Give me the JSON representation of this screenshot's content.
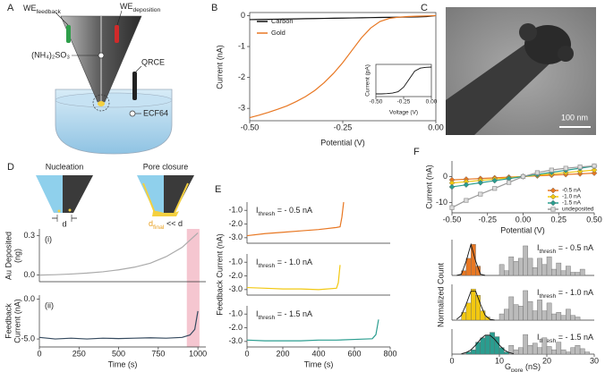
{
  "panel_labels": [
    "A",
    "B",
    "C",
    "D",
    "E",
    "F"
  ],
  "panel_a": {
    "we_feedback": {
      "text": "WE",
      "sub": "feedback"
    },
    "we_deposition": {
      "text": "WE",
      "sub": "deposition"
    },
    "electrolyte": "(NH₄)₂SO₃",
    "reference": "QRCE",
    "bath": "ECF64"
  },
  "panel_c": {
    "scale_bar": "100 nm"
  },
  "panel_d": {
    "nucleation": "Nucleation",
    "pore_closure": "Pore closure",
    "d": "d",
    "d_final": {
      "text": "d",
      "sub": "final",
      "rest": " << d"
    },
    "panel_i": "(i)",
    "panel_ii": "(ii)"
  },
  "chart_data": [
    {
      "type": "line",
      "xlabel": "Potential (V)",
      "ylabel": "Current (nA)",
      "xlim": [
        -0.5,
        0.0
      ],
      "ylim": [
        -3.4,
        0.1
      ],
      "xticks": [
        {
          "value": -0.5,
          "label": "-0.50"
        },
        {
          "value": -0.25,
          "label": "-0.25"
        },
        {
          "value": 0,
          "label": "0.00"
        }
      ],
      "yticks": [
        -3,
        -2,
        -1,
        0
      ],
      "legend": "upper left",
      "x": [
        -0.5,
        -0.475,
        -0.45,
        -0.425,
        -0.4,
        -0.375,
        -0.35,
        -0.325,
        -0.3,
        -0.275,
        -0.25,
        -0.225,
        -0.2,
        -0.175,
        -0.15,
        -0.125,
        -0.1,
        -0.075,
        -0.05,
        -0.025,
        0
      ],
      "series": [
        {
          "name": "Carbon",
          "color": "#111111",
          "values": [
            -0.13,
            -0.125,
            -0.12,
            -0.115,
            -0.11,
            -0.105,
            -0.1,
            -0.095,
            -0.09,
            -0.085,
            -0.08,
            -0.075,
            -0.07,
            -0.065,
            -0.06,
            -0.055,
            -0.05,
            -0.045,
            -0.04,
            -0.03,
            0
          ]
        },
        {
          "name": "Gold",
          "color": "#e87722",
          "values": [
            -3.3,
            -3.22,
            -3.13,
            -3.03,
            -2.92,
            -2.78,
            -2.62,
            -2.42,
            -2.17,
            -1.87,
            -1.52,
            -1.12,
            -0.72,
            -0.4,
            -0.19,
            -0.09,
            -0.05,
            -0.03,
            -0.02,
            -0.01,
            0
          ]
        }
      ]
    },
    {
      "type": "line",
      "xlabel": "Voltage (V)",
      "ylabel": "Current (pA)",
      "xlim": [
        -0.5,
        0.0
      ],
      "ylim": [
        -1.1,
        0.1
      ],
      "xticks": [
        {
          "value": -0.5,
          "label": "-0.50"
        },
        {
          "value": -0.25,
          "label": "-0.25"
        },
        {
          "value": 0,
          "label": "0.00"
        }
      ],
      "x": [
        -0.5,
        -0.45,
        -0.4,
        -0.35,
        -0.3,
        -0.25,
        -0.2,
        -0.15,
        -0.1,
        -0.05,
        0
      ],
      "series": [
        {
          "color": "#111111",
          "values": [
            -1,
            -1,
            -0.99,
            -0.97,
            -0.92,
            -0.75,
            -0.45,
            -0.15,
            -0.04,
            -0.01,
            0
          ]
        }
      ]
    },
    {
      "type": "line",
      "ylabel": [
        "Au Deposited",
        "(ng)"
      ],
      "xlim": [
        0,
        1050
      ],
      "ylim": [
        -0.05,
        0.35
      ],
      "yticks": [
        {
          "value": 0,
          "label": "0.0"
        },
        {
          "value": 0.3,
          "label": "0.3"
        }
      ],
      "highlight_x": [
        930,
        1010
      ],
      "highlight_color": "#f2b8c4",
      "x": [
        0,
        100,
        200,
        300,
        400,
        500,
        600,
        700,
        800,
        900,
        1000
      ],
      "series": [
        {
          "color": "#aaaaaa",
          "values": [
            0,
            0.003,
            0.008,
            0.015,
            0.025,
            0.04,
            0.06,
            0.09,
            0.14,
            0.21,
            0.32
          ]
        }
      ]
    },
    {
      "type": "line",
      "xlabel": "Time (s)",
      "ylabel": [
        "Feedback",
        "Current (nA)"
      ],
      "xlim": [
        0,
        1050
      ],
      "ylim": [
        -6,
        0.5
      ],
      "xticks": [
        0,
        250,
        500,
        750,
        1000
      ],
      "yticks": [
        {
          "value": -5,
          "label": "-5.0"
        },
        {
          "value": 0,
          "label": "0.0"
        }
      ],
      "x": [
        0,
        100,
        200,
        300,
        400,
        500,
        600,
        700,
        800,
        900,
        950,
        980,
        1000
      ],
      "series": [
        {
          "color": "#34495e",
          "values": [
            -4.8,
            -5.0,
            -4.9,
            -5.0,
            -4.9,
            -4.95,
            -4.9,
            -4.85,
            -4.9,
            -4.8,
            -4.5,
            -3.8,
            -1.5
          ]
        }
      ]
    },
    {
      "type": "line",
      "annotation": {
        "text": "I",
        "sub": "thresh",
        "rest": " = - 0.5 nA"
      },
      "xlim": [
        0,
        800
      ],
      "ylim": [
        -3.4,
        -0.4
      ],
      "yticks": [
        {
          "value": -1,
          "label": "-1.0"
        },
        {
          "value": -2,
          "label": "-2.0"
        },
        {
          "value": -3,
          "label": "-3.0"
        }
      ],
      "x": [
        0,
        100,
        200,
        300,
        400,
        500,
        520,
        530,
        540
      ],
      "series": [
        {
          "color": "#e87722",
          "values": [
            -2.85,
            -2.7,
            -2.6,
            -2.5,
            -2.4,
            -2.25,
            -2.2,
            -1.5,
            -0.4
          ]
        }
      ]
    },
    {
      "type": "line",
      "annotation": {
        "text": "I",
        "sub": "thresh",
        "rest": " = - 1.0 nA"
      },
      "ylabel": "Feedback Current (nA)",
      "xlim": [
        0,
        800
      ],
      "ylim": [
        -3.4,
        -0.4
      ],
      "yticks": [
        {
          "value": -1,
          "label": "-1.0"
        },
        {
          "value": -2,
          "label": "-2.0"
        },
        {
          "value": -3,
          "label": "-3.0"
        }
      ],
      "x": [
        0,
        100,
        200,
        300,
        400,
        500,
        510,
        520
      ],
      "series": [
        {
          "color": "#f2c811",
          "values": [
            -2.85,
            -2.9,
            -2.95,
            -2.95,
            -3.0,
            -2.9,
            -2.5,
            -1.2
          ]
        }
      ]
    },
    {
      "type": "line",
      "annotation": {
        "text": "I",
        "sub": "thresh",
        "rest": " = - 1.5 nA"
      },
      "xlabel": "Time (s)",
      "xlim": [
        0,
        800
      ],
      "ylim": [
        -3.4,
        -0.4
      ],
      "xticks": [
        0,
        200,
        400,
        600,
        800
      ],
      "yticks": [
        {
          "value": -1,
          "label": "-1.0"
        },
        {
          "value": -2,
          "label": "-2.0"
        },
        {
          "value": -3,
          "label": "-3.0"
        }
      ],
      "x": [
        0,
        100,
        200,
        300,
        400,
        500,
        600,
        700,
        720,
        735
      ],
      "series": [
        {
          "color": "#2a9d8f",
          "values": [
            -2.9,
            -2.95,
            -2.95,
            -2.95,
            -2.9,
            -2.9,
            -2.85,
            -2.8,
            -2.5,
            -1.4
          ]
        }
      ]
    },
    {
      "type": "line",
      "xlabel": "Potential (V)",
      "ylabel": "Current (nA)",
      "xlim": [
        -0.5,
        0.5
      ],
      "ylim": [
        -14,
        6
      ],
      "xticks": [
        {
          "value": -0.5,
          "label": "-0.50"
        },
        {
          "value": -0.25,
          "label": "-0.25"
        },
        {
          "value": 0,
          "label": "0.00"
        },
        {
          "value": 0.25,
          "label": "0.25"
        },
        {
          "value": 0.5,
          "label": "0.50"
        }
      ],
      "yticks": [
        -10,
        0
      ],
      "legend": "lower right",
      "x": [
        -0.5,
        -0.4,
        -0.3,
        -0.2,
        -0.1,
        0,
        0.1,
        0.2,
        0.3,
        0.4,
        0.5
      ],
      "series": [
        {
          "name": "-0.5 nA",
          "color": "#e87722",
          "marker": "diamond",
          "values": [
            -1.3,
            -1.04,
            -0.78,
            -0.52,
            -0.26,
            0,
            0.26,
            0.52,
            0.78,
            1.04,
            1.3
          ]
        },
        {
          "name": "-1.0 nA",
          "color": "#f2c811",
          "marker": "diamond",
          "values": [
            -2.5,
            -2,
            -1.5,
            -1,
            -0.5,
            0,
            0.5,
            1,
            1.5,
            2,
            2.5
          ]
        },
        {
          "name": "-1.5 nA",
          "color": "#2a9d8f",
          "marker": "diamond",
          "values": [
            -4,
            -3.2,
            -2.4,
            -1.6,
            -0.8,
            0,
            0.8,
            1.6,
            2.4,
            3.2,
            4
          ]
        },
        {
          "name": "undeposited",
          "color": "#999999",
          "marker": "square",
          "values": [
            -12,
            -9.2,
            -6.8,
            -4.6,
            -2.3,
            0,
            1.5,
            2.5,
            3.2,
            3.7,
            4.1
          ]
        }
      ]
    },
    {
      "type": "histogram",
      "annotation": {
        "text": "I",
        "sub": "thresh",
        "rest": " = - 0.5 nA"
      },
      "xlim": [
        0,
        30
      ],
      "ylim": [
        0,
        1.15
      ],
      "bins": [
        0,
        1,
        2,
        3,
        4,
        5,
        6,
        7,
        8,
        9,
        10,
        11,
        12,
        13,
        14,
        15,
        16,
        17,
        18,
        19,
        20,
        21,
        22,
        23,
        24,
        25,
        26,
        27,
        28,
        29,
        30
      ],
      "series": [
        {
          "color": "#e87722",
          "values": [
            0,
            0,
            0.15,
            0.55,
            1.0,
            0.3,
            0,
            0,
            0,
            0,
            0,
            0,
            0,
            0,
            0,
            0,
            0,
            0,
            0,
            0,
            0,
            0,
            0,
            0,
            0,
            0,
            0,
            0,
            0,
            0
          ]
        },
        {
          "color": "#bbbbbb",
          "values": [
            0,
            0,
            0,
            0,
            0,
            0,
            0,
            0,
            0,
            0,
            0.35,
            0.15,
            0.6,
            0.45,
            0.55,
            0.95,
            0.55,
            0.25,
            0.55,
            0.35,
            0.6,
            0.2,
            0.4,
            0.15,
            0.3,
            0.1,
            0.1,
            0.2,
            0,
            0
          ]
        }
      ],
      "fit": {
        "color": "#111111",
        "x": [
          1,
          2,
          3,
          4,
          5,
          6,
          7
        ],
        "values": [
          0.001,
          0.04,
          0.46,
          1.0,
          0.46,
          0.04,
          0.001
        ]
      }
    },
    {
      "type": "histogram",
      "annotation": {
        "text": "I",
        "sub": "thresh",
        "rest": " = - 1.0 nA"
      },
      "ylabel": "Normalized Count",
      "xlim": [
        0,
        30
      ],
      "ylim": [
        0,
        1.15
      ],
      "bins": [
        0,
        1,
        2,
        3,
        4,
        5,
        6,
        7,
        8,
        9,
        10,
        11,
        12,
        13,
        14,
        15,
        16,
        17,
        18,
        19,
        20,
        21,
        22,
        23,
        24,
        25,
        26,
        27,
        28,
        29,
        30
      ],
      "series": [
        {
          "color": "#f2c811",
          "values": [
            0,
            0,
            0.25,
            0.55,
            1.0,
            0.8,
            0.3,
            0.1,
            0,
            0,
            0,
            0,
            0,
            0,
            0,
            0,
            0,
            0,
            0,
            0,
            0,
            0,
            0,
            0,
            0,
            0,
            0,
            0,
            0,
            0
          ]
        },
        {
          "color": "#bbbbbb",
          "values": [
            0,
            0,
            0,
            0,
            0,
            0,
            0,
            0,
            0,
            0,
            0.2,
            0.35,
            0.75,
            0.5,
            0.45,
            0.95,
            0.6,
            0.3,
            0.65,
            0.3,
            0.55,
            0.2,
            0.25,
            0.15,
            0.35,
            0.15,
            0.1,
            0,
            0,
            0
          ]
        }
      ],
      "fit": {
        "color": "#111111",
        "x": [
          1,
          2,
          3,
          4,
          5,
          6,
          7,
          8,
          9
        ],
        "values": [
          0.027,
          0.157,
          0.514,
          0.929,
          0.929,
          0.514,
          0.157,
          0.027,
          0.002
        ]
      }
    },
    {
      "type": "histogram",
      "annotation": {
        "text": "I",
        "sub": "thresh",
        "rest": " = - 1.5 nA"
      },
      "xlabel": {
        "text": "G",
        "sub": "pore",
        "rest": " (nS)"
      },
      "xlim": [
        0,
        30
      ],
      "ylim": [
        0,
        1.15
      ],
      "xticks": [
        0,
        10,
        20,
        30
      ],
      "bins": [
        0,
        1,
        2,
        3,
        4,
        5,
        6,
        7,
        8,
        9,
        10,
        11,
        12,
        13,
        14,
        15,
        16,
        17,
        18,
        19,
        20,
        21,
        22,
        23,
        24,
        25,
        26,
        27,
        28,
        29,
        30
      ],
      "series": [
        {
          "color": "#2a9d8f",
          "values": [
            0,
            0,
            0,
            0.1,
            0.2,
            0.55,
            0.75,
            0.85,
            1.0,
            0.8,
            0.3,
            0.1,
            0,
            0,
            0,
            0,
            0,
            0,
            0,
            0,
            0,
            0,
            0,
            0,
            0,
            0,
            0,
            0,
            0,
            0
          ]
        },
        {
          "color": "#bbbbbb",
          "values": [
            0,
            0,
            0,
            0,
            0,
            0,
            0,
            0,
            0,
            0,
            0,
            0,
            0.4,
            0.2,
            0.3,
            0.9,
            0.4,
            0.5,
            0.3,
            0.75,
            0.35,
            0.2,
            0.55,
            0.2,
            0.1,
            0.3,
            0.4,
            0.25,
            0.1,
            0
          ]
        }
      ],
      "fit": {
        "color": "#111111",
        "x": [
          2,
          3,
          4,
          5,
          6,
          7,
          8,
          9,
          10,
          11,
          12,
          13
        ],
        "values": [
          0.02,
          0.072,
          0.195,
          0.412,
          0.68,
          0.872,
          0.872,
          0.68,
          0.412,
          0.195,
          0.072,
          0.02
        ]
      }
    }
  ]
}
